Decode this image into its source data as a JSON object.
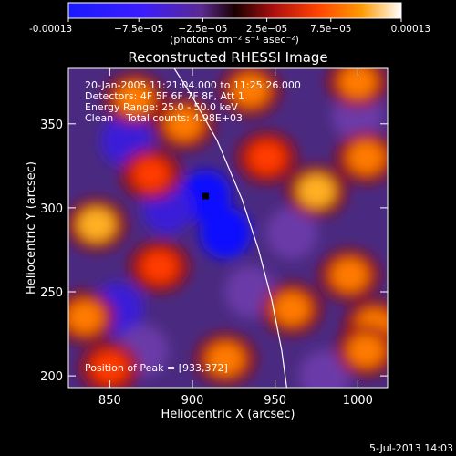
{
  "chart_data": {
    "type": "heatmap",
    "title": "Reconstructed RHESSI Image",
    "xlabel": "Heliocentric X (arcsec)",
    "ylabel": "Heliocentric Y (arcsec)",
    "xlim": [
      825,
      1018
    ],
    "ylim": [
      193,
      383
    ],
    "x_ticks": [
      850,
      900,
      950,
      1000
    ],
    "y_ticks": [
      200,
      250,
      300,
      350
    ],
    "colorbar": {
      "range": [
        -0.00013,
        0.00013
      ],
      "tick_labels": [
        "-0.00013",
        "−7.5e−05",
        "−2.5e−05",
        "2.5e−05",
        "7.5e−05",
        "0.00013"
      ],
      "tick_values": [
        -0.00013,
        -7.5e-05,
        -2.5e-05,
        2.5e-05,
        7.5e-05,
        0.00013
      ],
      "unit_label": "(photons cm⁻² s⁻¹ asec⁻²)"
    },
    "annotations": {
      "time_range": "20-Jan-2005 11:21:04.000 to 11:25:26.000",
      "detectors": "Detectors: 4F 5F 6F 7F 8F, Att 1",
      "energy_range": "Energy Range: 25.0 - 50.0 keV",
      "algorithm": "Clean    Total counts: 4.98E+03",
      "peak": "Position of Peak = [933,372]"
    },
    "limb_curve": [
      [
        889,
        383
      ],
      [
        900,
        366
      ],
      [
        915,
        340
      ],
      [
        930,
        305
      ],
      [
        940,
        275
      ],
      [
        948,
        245
      ],
      [
        954,
        215
      ],
      [
        957,
        193
      ]
    ],
    "hotspots": [
      {
        "x": 842,
        "y": 290,
        "v": 0.00012
      },
      {
        "x": 895,
        "y": 350,
        "v": 9e-05
      },
      {
        "x": 865,
        "y": 365,
        "v": 0.0001
      },
      {
        "x": 935,
        "y": 370,
        "v": 0.00011
      },
      {
        "x": 975,
        "y": 310,
        "v": 0.00012
      },
      {
        "x": 1005,
        "y": 330,
        "v": 0.0001
      },
      {
        "x": 995,
        "y": 260,
        "v": 0.00011
      },
      {
        "x": 1010,
        "y": 230,
        "v": 9e-05
      },
      {
        "x": 835,
        "y": 235,
        "v": 0.0001
      },
      {
        "x": 880,
        "y": 265,
        "v": 8e-05
      },
      {
        "x": 920,
        "y": 210,
        "v": 0.00011
      },
      {
        "x": 960,
        "y": 240,
        "v": 9e-05
      },
      {
        "x": 945,
        "y": 330,
        "v": 8e-05
      },
      {
        "x": 1005,
        "y": 215,
        "v": 0.0001
      },
      {
        "x": 850,
        "y": 205,
        "v": 8e-05
      },
      {
        "x": 875,
        "y": 320,
        "v": 7e-05
      },
      {
        "x": 1000,
        "y": 375,
        "v": 9e-05
      }
    ],
    "coldspots": [
      {
        "x": 908,
        "y": 307,
        "v": -0.00013
      },
      {
        "x": 920,
        "y": 285,
        "v": -0.00011
      },
      {
        "x": 885,
        "y": 300,
        "v": -8e-05
      },
      {
        "x": 860,
        "y": 340,
        "v": -7e-05
      },
      {
        "x": 855,
        "y": 240,
        "v": -7e-05
      },
      {
        "x": 960,
        "y": 285,
        "v": -6e-05
      },
      {
        "x": 980,
        "y": 200,
        "v": -6e-05
      },
      {
        "x": 1000,
        "y": 355,
        "v": -5e-05
      },
      {
        "x": 870,
        "y": 215,
        "v": -6e-05
      },
      {
        "x": 935,
        "y": 250,
        "v": -5e-05
      }
    ]
  },
  "footer": {
    "timestamp": "5-Jul-2013 14:03"
  }
}
